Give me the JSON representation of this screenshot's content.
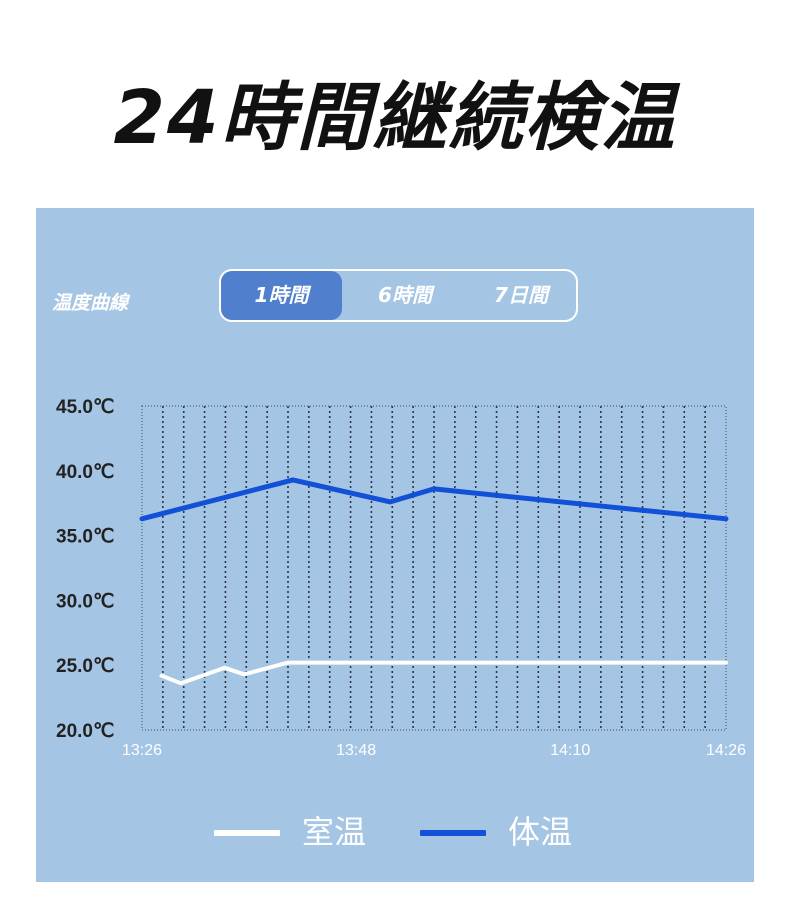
{
  "title": "24時間継続検温",
  "panel": {
    "label": "温度曲線",
    "tabs": [
      {
        "label": "1時間",
        "active": true
      },
      {
        "label": "6時間",
        "active": false
      },
      {
        "label": "7日間",
        "active": false
      }
    ]
  },
  "colors": {
    "panel_bg": "#a5c5e5",
    "active_tab": "#4f7fcd",
    "body_temp": "#1350d8",
    "room_temp": "#ffffff",
    "axis_text": "#222222",
    "x_tick_text": "#ffffff"
  },
  "chart_data": {
    "type": "line",
    "xlabel": "",
    "ylabel": "",
    "y_ticks": [
      "45.0℃",
      "40.0℃",
      "35.0℃",
      "30.0℃",
      "25.0℃",
      "20.0℃"
    ],
    "y_tick_values": [
      45,
      40,
      35,
      30,
      25,
      20
    ],
    "ylim": [
      20,
      45
    ],
    "x_ticks": [
      "13:26",
      "13:48",
      "14:10",
      "14:26"
    ],
    "x_tick_values": [
      0,
      22,
      44,
      60
    ],
    "xlim": [
      0,
      60
    ],
    "grid": "vertical dotted",
    "legend_position": "bottom",
    "series": [
      {
        "name": "室温",
        "color": "#ffffff",
        "points": [
          [
            2,
            24.2
          ],
          [
            4,
            23.6
          ],
          [
            8.5,
            24.8
          ],
          [
            10.5,
            24.3
          ],
          [
            15,
            25.2
          ],
          [
            60,
            25.2
          ]
        ]
      },
      {
        "name": "体温",
        "color": "#1350d8",
        "points": [
          [
            0,
            36.3
          ],
          [
            15.5,
            39.3
          ],
          [
            25.5,
            37.6
          ],
          [
            30,
            38.6
          ],
          [
            60,
            36.3
          ]
        ]
      }
    ]
  }
}
